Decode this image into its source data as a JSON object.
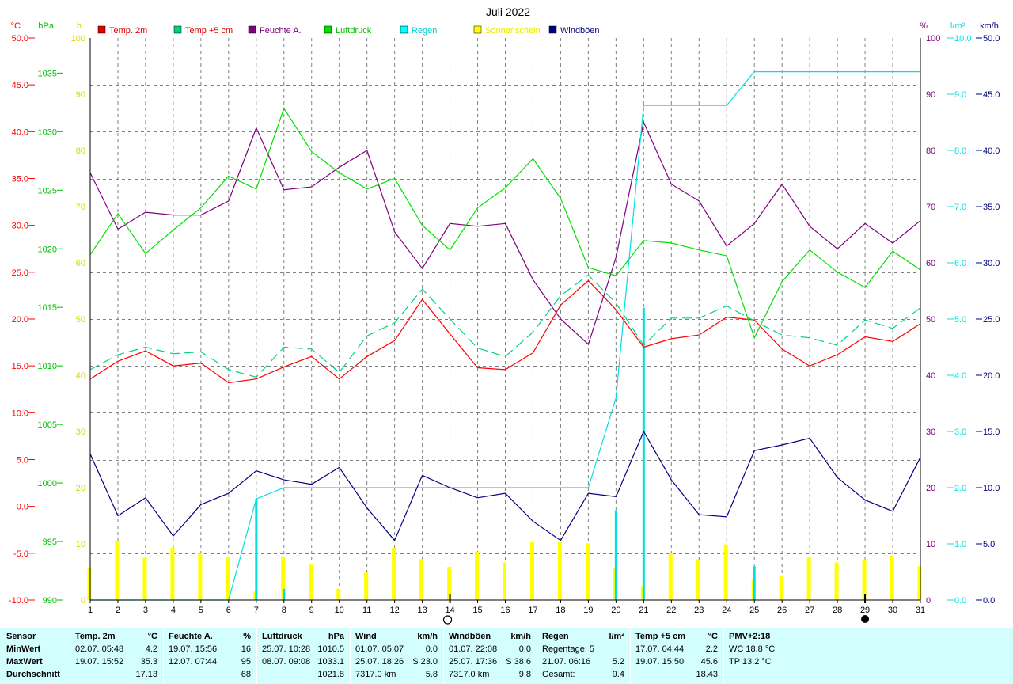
{
  "chart_data": {
    "type": "line",
    "title": "Juli 2022",
    "x": [
      1,
      2,
      3,
      4,
      5,
      6,
      7,
      8,
      9,
      10,
      11,
      12,
      13,
      14,
      15,
      16,
      17,
      18,
      19,
      20,
      21,
      22,
      23,
      24,
      25,
      26,
      27,
      28,
      29,
      30,
      31
    ],
    "axes": {
      "temp": {
        "unit": "°C",
        "min": -10,
        "max": 50,
        "ticks": [
          "-10.0",
          "-5.0",
          "0.0",
          "5.0",
          "10.0",
          "15.0",
          "20.0",
          "25.0",
          "30.0",
          "35.0",
          "40.0",
          "45.0",
          "50.0"
        ],
        "color": "#ff0000"
      },
      "pressure": {
        "unit": "hPa",
        "min": 990,
        "max": 1038,
        "ticks": [
          "990",
          "995",
          "1000",
          "1005",
          "1010",
          "1015",
          "1020",
          "1025",
          "1030",
          "1035"
        ],
        "color": "#00c000"
      },
      "sun": {
        "unit": "h",
        "min": 0,
        "max": 100,
        "ticks": [
          "0",
          "10",
          "20",
          "30",
          "40",
          "50",
          "60",
          "70",
          "80",
          "90",
          "100"
        ],
        "color": "#d8d800"
      },
      "humidity": {
        "unit": "%",
        "min": 0,
        "max": 100,
        "ticks": [
          "0",
          "10",
          "20",
          "30",
          "40",
          "50",
          "60",
          "70",
          "80",
          "90",
          "100"
        ],
        "color": "#800080"
      },
      "rain": {
        "unit": "l/m²",
        "min": 0,
        "max": 10,
        "ticks": [
          "0.0",
          "1.0",
          "2.0",
          "3.0",
          "4.0",
          "5.0",
          "6.0",
          "7.0",
          "8.0",
          "9.0",
          "10.0"
        ],
        "color": "#00e0e0"
      },
      "wind": {
        "unit": "km/h",
        "min": 0,
        "max": 50,
        "ticks": [
          "0.0",
          "5.0",
          "10.0",
          "15.0",
          "20.0",
          "25.0",
          "30.0",
          "35.0",
          "40.0",
          "45.0",
          "50.0"
        ],
        "color": "#000080"
      }
    },
    "series": [
      {
        "name": "Temp. 2m",
        "axis": "temp",
        "color": "#ff0000",
        "style": "solid",
        "values": [
          13.6,
          15.5,
          16.6,
          15.0,
          15.3,
          13.2,
          13.6,
          14.9,
          16.0,
          13.6,
          16.0,
          17.7,
          22.1,
          18.4,
          14.8,
          14.6,
          16.4,
          21.5,
          24.1,
          21.0,
          17.0,
          17.9,
          18.3,
          20.2,
          19.9,
          16.8,
          15.0,
          16.2,
          18.1,
          17.6,
          19.5
        ]
      },
      {
        "name": "Temp +5 cm",
        "axis": "temp",
        "color": "#00d080",
        "style": "dashed",
        "values": [
          14.6,
          16.2,
          17.0,
          16.3,
          16.5,
          14.6,
          13.8,
          17.0,
          16.8,
          14.3,
          18.2,
          19.6,
          23.2,
          20.0,
          16.9,
          16.0,
          18.6,
          22.5,
          24.7,
          21.7,
          17.2,
          20.1,
          20.1,
          21.4,
          19.8,
          18.3,
          18.0,
          17.2,
          19.9,
          19.0,
          21.2
        ]
      },
      {
        "name": "Feuchte A.",
        "axis": "humidity",
        "color": "#800080",
        "style": "solid",
        "values": [
          76,
          66,
          69,
          68.5,
          68.5,
          71,
          84,
          73,
          73.5,
          77,
          80,
          65.5,
          59,
          67,
          66.5,
          67,
          57,
          50,
          45.5,
          61,
          85,
          74,
          71,
          63,
          67,
          74,
          66.5,
          62.5,
          67,
          63.5,
          67.5
        ]
      },
      {
        "name": "Luftdruck",
        "axis": "pressure",
        "color": "#00e000",
        "style": "solid",
        "values": [
          1019.5,
          1023.0,
          1019.6,
          1021.6,
          1023.5,
          1026.2,
          1025.1,
          1032.0,
          1028.3,
          1026.5,
          1025.1,
          1026.0,
          1022.0,
          1019.9,
          1023.5,
          1025.2,
          1027.7,
          1024.3,
          1018.4,
          1017.7,
          1020.7,
          1020.5,
          1019.9,
          1019.4,
          1012.4,
          1017.2,
          1019.9,
          1018.0,
          1016.7,
          1019.8,
          1018.2
        ]
      },
      {
        "name": "Regen",
        "axis": "rain",
        "color": "#00e0e0",
        "style": "solid",
        "values": [
          0,
          0,
          0,
          0,
          0,
          0,
          1.8,
          2.0,
          2.0,
          2.0,
          2.0,
          2.0,
          2.0,
          2.0,
          2.0,
          2.0,
          2.0,
          2.0,
          2.0,
          3.6,
          8.8,
          8.8,
          8.8,
          8.8,
          9.4,
          9.4,
          9.4,
          9.4,
          9.4,
          9.4,
          9.4
        ]
      },
      {
        "name": "Windböen",
        "axis": "wind",
        "color": "#000080",
        "style": "solid",
        "values": [
          13.0,
          7.5,
          9.1,
          5.7,
          8.5,
          9.5,
          11.5,
          10.7,
          10.3,
          11.8,
          8.2,
          5.3,
          11.1,
          10.0,
          9.1,
          9.5,
          7.0,
          5.3,
          9.5,
          9.2,
          15.0,
          10.7,
          7.6,
          7.4,
          13.3,
          13.8,
          14.4,
          10.9,
          8.9,
          7.9,
          12.7
        ]
      }
    ],
    "bars": [
      {
        "name": "Sonnenschein",
        "axis": "sun",
        "color": "#ffff00",
        "values": [
          5.8,
          10.5,
          7.5,
          9.3,
          8.3,
          7.6,
          1.5,
          7.6,
          6.4,
          2.0,
          4.9,
          9.3,
          7.3,
          5.9,
          8.6,
          6.7,
          10.3,
          10.3,
          10.1,
          5.7,
          2.5,
          8.4,
          7.2,
          9.9,
          3.7,
          4.2,
          7.6,
          6.7,
          7.2,
          7.9,
          6.0
        ]
      },
      {
        "name": "Regen",
        "axis": "rain",
        "color": "#00e0e0",
        "values": [
          0,
          0,
          0,
          0,
          0,
          0,
          1.8,
          0.2,
          0,
          0,
          0,
          0,
          0,
          0,
          0,
          0,
          0,
          0,
          0,
          1.6,
          5.2,
          0,
          0,
          0,
          0.6,
          0,
          0,
          0,
          0,
          0,
          0
        ]
      }
    ],
    "legend": [
      {
        "label": "Temp. 2m",
        "color": "#e00000",
        "text_color": "#e00000"
      },
      {
        "label": "Temp +5 cm",
        "color": "#00d080",
        "text_color": "#e00000"
      },
      {
        "label": "Feuchte A.",
        "color": "#800080",
        "text_color": "#800080"
      },
      {
        "label": "Luftdruck",
        "color": "#00e000",
        "text_color": "#00c000"
      },
      {
        "label": "Regen",
        "color": "#00ffff",
        "text_color": "#00d0d0"
      },
      {
        "label": "Sonnenschein",
        "color": "#ffff00",
        "text_color": "#e8e800"
      },
      {
        "label": "Windböen",
        "color": "#000080",
        "text_color": "#000080"
      }
    ],
    "moon_markers": [
      {
        "day": 14,
        "phase": "full"
      },
      {
        "day": 29,
        "phase": "new"
      }
    ],
    "legend_position": "top",
    "grid": true
  },
  "stats": {
    "sensor": {
      "title": "Sensor",
      "rows": [
        "MinWert",
        "MaxWert",
        "Durchschnitt"
      ]
    },
    "temp2m": {
      "title": "Temp. 2m",
      "unit": "°C",
      "rows": [
        [
          "02.07.  05:48",
          "4.2"
        ],
        [
          "19.07.  15:52",
          "35.3"
        ],
        [
          "",
          "17.13"
        ]
      ]
    },
    "humidity": {
      "title": "Feuchte A.",
      "unit": "%",
      "rows": [
        [
          "19.07.  15:56",
          "16"
        ],
        [
          "12.07.  07:44",
          "95"
        ],
        [
          "",
          "68"
        ]
      ]
    },
    "pressure": {
      "title": "Luftdruck",
      "unit": "hPa",
      "rows": [
        [
          "25.07.  10:28",
          "1010.5"
        ],
        [
          "08.07.  09:08",
          "1033.1"
        ],
        [
          "",
          "1021.8"
        ]
      ]
    },
    "wind": {
      "title": "Wind",
      "unit": "km/h",
      "rows": [
        [
          "01.07.  05:07",
          "0.0"
        ],
        [
          "25.07.  18:26",
          "S 23.0"
        ],
        [
          "7317.0 km",
          "5.8"
        ]
      ]
    },
    "gusts": {
      "title": "Windböen",
      "unit": "km/h",
      "rows": [
        [
          "01.07.  22:08",
          "0.0"
        ],
        [
          "25.07.  17:36",
          "S 38.6"
        ],
        [
          "7317.0 km",
          "9.8"
        ]
      ]
    },
    "rain": {
      "title": "Regen",
      "unit": "l/m²",
      "rows": [
        [
          "Regentage: 5",
          ""
        ],
        [
          "21.07.  06:16",
          "5.2"
        ],
        [
          "Gesamt:",
          "9.4"
        ]
      ]
    },
    "temp5": {
      "title": "Temp +5 cm",
      "unit": "°C",
      "rows": [
        [
          "17.07.  04:44",
          "2.2"
        ],
        [
          "19.07.  15:50",
          "45.6"
        ],
        [
          "",
          "18.43"
        ]
      ]
    },
    "pmv": {
      "title": "PMV+2:18",
      "rows": [
        "WC 18.8 °C",
        "TP 13.2 °C"
      ]
    }
  }
}
